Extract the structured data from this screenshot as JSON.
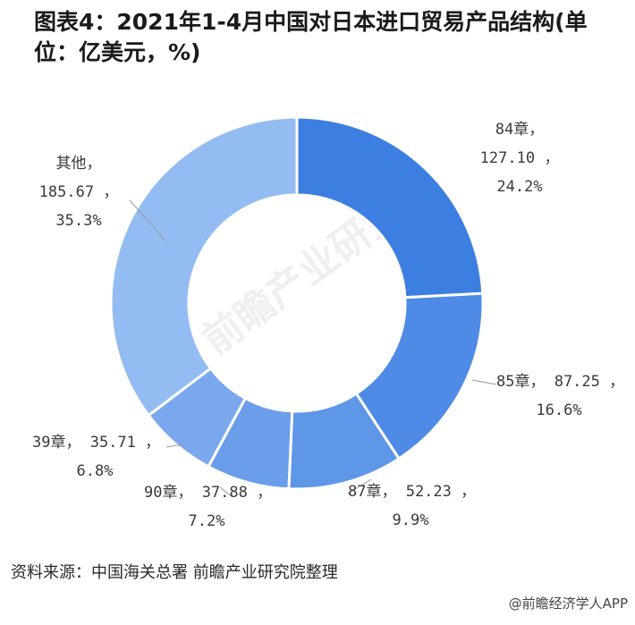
{
  "page": {
    "title": "图表4：2021年1-4月中国对日本进口贸易产品结构(单位：亿美元，%)",
    "source": "资料来源：中国海关总署 前瞻产业研究院整理",
    "credit": "@前瞻经济学人APP",
    "watermark": "前瞻产业研究院"
  },
  "chart_data": {
    "type": "pie",
    "title": "图表4：2021年1-4月中国对日本进口贸易产品结构(单位：亿美元，%)",
    "donut": true,
    "start_angle_deg": 0,
    "direction": "clockwise",
    "slices": [
      {
        "name": "84章",
        "value": 127.1,
        "value_label": "127.10",
        "percent": 24.2,
        "percent_label": "24.2%",
        "color": "#3d7fe0"
      },
      {
        "name": "85章",
        "value": 87.25,
        "value_label": "87.25",
        "percent": 16.6,
        "percent_label": "16.6%",
        "color": "#4f8be6"
      },
      {
        "name": "87章",
        "value": 52.23,
        "value_label": "52.23",
        "percent": 9.9,
        "percent_label": "9.9%",
        "color": "#5e96e8"
      },
      {
        "name": "90章",
        "value": 37.88,
        "value_label": "37.88",
        "percent": 7.2,
        "percent_label": "7.2%",
        "color": "#6b9eea"
      },
      {
        "name": "39章",
        "value": 35.71,
        "value_label": "35.71",
        "percent": 6.8,
        "percent_label": "6.8%",
        "color": "#7aa8ed"
      },
      {
        "name": "其他",
        "value": 185.67,
        "value_label": "185.67",
        "percent": 35.3,
        "percent_label": "35.3%",
        "color": "#93bdf2"
      }
    ]
  }
}
